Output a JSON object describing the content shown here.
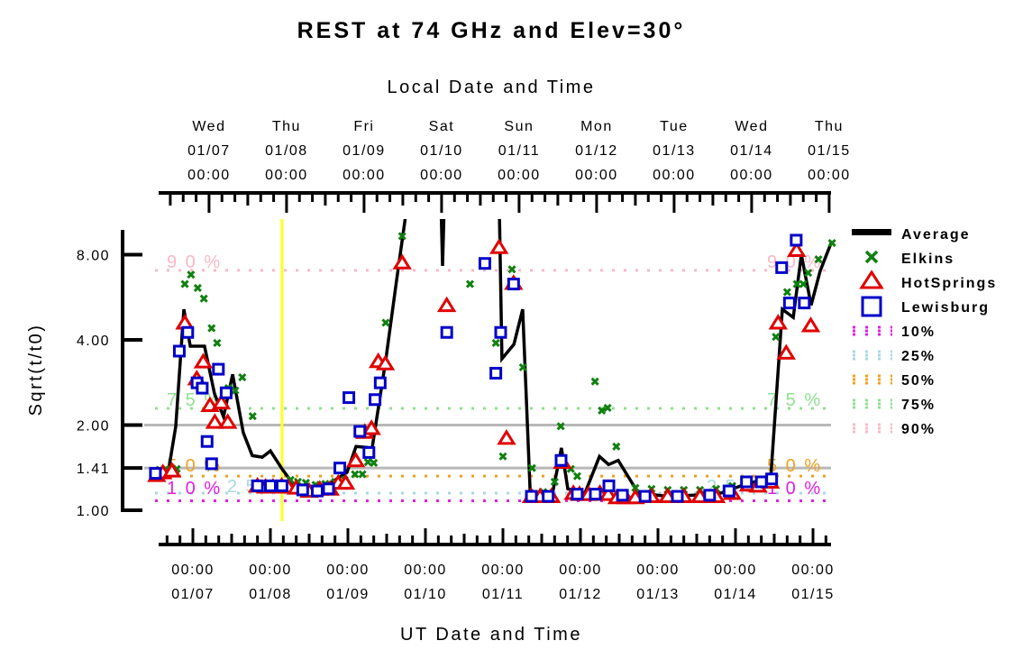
{
  "chart_data": {
    "type": "line",
    "title": "REST at 74 GHz and Elev=30°",
    "top_xlabel": "Local Date and Time",
    "xlabel": "UT Date and Time",
    "ylabel": "Sqrt(t/t0)",
    "yscale": "log2",
    "ylim": [
      1.0,
      11.0
    ],
    "xunit": "hours since 01/07 00:00 UT",
    "xlim": [
      -13,
      199
    ],
    "local_offset_hours": 5,
    "yticks": [
      {
        "value": 1.0,
        "label": "1.00"
      },
      {
        "value": 1.41,
        "label": "1.41"
      },
      {
        "value": 2.0,
        "label": "2.00"
      },
      {
        "value": 4.0,
        "label": "4.00"
      },
      {
        "value": 8.0,
        "label": "8.00"
      }
    ],
    "reference_lines": [
      1.41,
      2.0
    ],
    "top_ticks": [
      {
        "day": "Wed",
        "date": "01/07",
        "time": "00:00"
      },
      {
        "day": "Thu",
        "date": "01/08",
        "time": "00:00"
      },
      {
        "day": "Fri",
        "date": "01/09",
        "time": "00:00"
      },
      {
        "day": "Sat",
        "date": "01/10",
        "time": "00:00"
      },
      {
        "day": "Sun",
        "date": "01/11",
        "time": "00:00"
      },
      {
        "day": "Mon",
        "date": "01/12",
        "time": "00:00"
      },
      {
        "day": "Tue",
        "date": "01/13",
        "time": "00:00"
      },
      {
        "day": "Wed",
        "date": "01/14",
        "time": "00:00"
      },
      {
        "day": "Thu",
        "date": "01/15",
        "time": "00:00"
      }
    ],
    "bottom_ticks": [
      {
        "time": "00:00",
        "date": "01/07"
      },
      {
        "time": "00:00",
        "date": "01/08"
      },
      {
        "time": "00:00",
        "date": "01/09"
      },
      {
        "time": "00:00",
        "date": "01/10"
      },
      {
        "time": "00:00",
        "date": "01/11"
      },
      {
        "time": "00:00",
        "date": "01/12"
      },
      {
        "time": "00:00",
        "date": "01/13"
      },
      {
        "time": "00:00",
        "date": "01/14"
      },
      {
        "time": "00:00",
        "date": "01/15"
      }
    ],
    "current_time_marker_hours": 27.6,
    "percentiles": [
      {
        "name": "10%",
        "value": 1.08,
        "color": "#e020e0"
      },
      {
        "name": "25%",
        "value": 1.15,
        "color": "#a8d8e0"
      },
      {
        "name": "50%",
        "value": 1.32,
        "color": "#f0a020"
      },
      {
        "name": "75%",
        "value": 2.29,
        "color": "#90e090"
      },
      {
        "name": "90%",
        "value": 7.04,
        "color": "#f8b8c8"
      }
    ],
    "series": [
      {
        "name": "Average",
        "kind": "line",
        "color": "#000000",
        "points": [
          [
            -10.6,
            1.33
          ],
          [
            -7.5,
            1.39
          ],
          [
            -5.3,
            1.98
          ],
          [
            -2.8,
            5.13
          ],
          [
            -0.8,
            3.8
          ],
          [
            3.6,
            3.8
          ],
          [
            6.7,
            2.58
          ],
          [
            9.5,
            2.14
          ],
          [
            12.3,
            3.02
          ],
          [
            15.6,
            1.88
          ],
          [
            18.4,
            1.56
          ],
          [
            21.5,
            1.54
          ],
          [
            24,
            1.62
          ],
          [
            27.6,
            1.4
          ],
          [
            31,
            1.24
          ],
          [
            36.6,
            1.19
          ],
          [
            40.7,
            1.21
          ],
          [
            47.7,
            1.36
          ],
          [
            50.5,
            1.68
          ],
          [
            55.5,
            1.66
          ],
          [
            59.7,
            3.38
          ],
          [
            63.1,
            6.53
          ],
          [
            66.1,
            11.5
          ],
          [
            75.3,
            60
          ],
          [
            77.3,
            7.3
          ],
          [
            79.5,
            60
          ],
          [
            93.8,
            60
          ],
          [
            95.7,
            3.43
          ],
          [
            99.4,
            3.86
          ],
          [
            102.1,
            5.13
          ],
          [
            104.4,
            1.18
          ],
          [
            108,
            1.12
          ],
          [
            111.1,
            1.11
          ],
          [
            114.1,
            1.66
          ],
          [
            116.1,
            1.19
          ],
          [
            121.4,
            1.15
          ],
          [
            125.9,
            1.55
          ],
          [
            128.7,
            1.45
          ],
          [
            131.7,
            1.5
          ],
          [
            137.9,
            1.15
          ],
          [
            146.8,
            1.12
          ],
          [
            155.2,
            1.13
          ],
          [
            163.5,
            1.15
          ],
          [
            171.4,
            1.24
          ],
          [
            178.9,
            1.3
          ],
          [
            182.5,
            5.13
          ],
          [
            185.9,
            4.8
          ],
          [
            188.4,
            8.0
          ],
          [
            191.4,
            5.3
          ],
          [
            194.2,
            7.0
          ],
          [
            197.6,
            8.8
          ]
        ]
      },
      {
        "name": "Elkins",
        "kind": "x",
        "color": "#108010",
        "points": [
          [
            -10.3,
            1.39
          ],
          [
            -8.4,
            1.4
          ],
          [
            -5.0,
            1.4
          ],
          [
            -2.5,
            6.3
          ],
          [
            -0.6,
            6.8
          ],
          [
            1.5,
            6.1
          ],
          [
            3.4,
            5.6
          ],
          [
            5.8,
            4.4
          ],
          [
            7.5,
            3.9
          ],
          [
            11,
            2.7
          ],
          [
            13.1,
            2.65
          ],
          [
            15.3,
            2.95
          ],
          [
            18.5,
            2.15
          ],
          [
            30.2,
            1.28
          ],
          [
            32.5,
            1.26
          ],
          [
            35,
            1.25
          ],
          [
            38,
            1.23
          ],
          [
            41,
            1.24
          ],
          [
            44,
            1.26
          ],
          [
            47,
            1.28
          ],
          [
            50.2,
            1.34
          ],
          [
            52.5,
            1.34
          ],
          [
            54.2,
            1.48
          ],
          [
            56,
            1.47
          ],
          [
            59.7,
            4.6
          ],
          [
            64.8,
            9.3
          ],
          [
            85.8,
            6.3
          ],
          [
            93.8,
            3.9
          ],
          [
            96,
            1.55
          ],
          [
            98.8,
            7.1
          ],
          [
            102.2,
            3.2
          ],
          [
            105,
            1.41
          ],
          [
            108.5,
            1.16
          ],
          [
            112,
            1.26
          ],
          [
            113.9,
            1.98
          ],
          [
            117,
            1.4
          ],
          [
            119,
            1.32
          ],
          [
            124.5,
            2.85
          ],
          [
            126.6,
            2.25
          ],
          [
            128.4,
            2.3
          ],
          [
            131.1,
            1.68
          ],
          [
            137,
            1.2
          ],
          [
            142,
            1.19
          ],
          [
            147,
            1.18
          ],
          [
            152,
            1.18
          ],
          [
            157,
            1.18
          ],
          [
            162,
            1.19
          ],
          [
            167,
            1.22
          ],
          [
            172,
            1.23
          ],
          [
            177,
            1.27
          ],
          [
            180.5,
            4.1
          ],
          [
            184,
            5.9
          ],
          [
            187,
            6.3
          ],
          [
            189,
            6.3
          ],
          [
            190.5,
            6.9
          ],
          [
            193.7,
            7.7
          ],
          [
            197.9,
            8.8
          ]
        ]
      },
      {
        "name": "HotSprings",
        "kind": "triangle",
        "color": "#e00000",
        "points": [
          [
            -11.2,
            1.33
          ],
          [
            -9.3,
            1.36
          ],
          [
            -6.5,
            1.38
          ],
          [
            -2.5,
            4.6
          ],
          [
            1.2,
            2.92
          ],
          [
            3.2,
            3.35
          ],
          [
            5.3,
            2.35
          ],
          [
            6.8,
            2.05
          ],
          [
            8.8,
            2.4
          ],
          [
            10.8,
            2.05
          ],
          [
            20,
            1.22
          ],
          [
            22.5,
            1.21
          ],
          [
            24.8,
            1.21
          ],
          [
            27.5,
            1.22
          ],
          [
            29.5,
            1.21
          ],
          [
            32,
            1.2
          ],
          [
            36,
            1.17
          ],
          [
            39.3,
            1.19
          ],
          [
            42.5,
            1.19
          ],
          [
            45,
            1.25
          ],
          [
            47.3,
            1.25
          ],
          [
            50.4,
            1.5
          ],
          [
            53.2,
            1.89
          ],
          [
            55.3,
            1.95
          ],
          [
            57.4,
            3.36
          ],
          [
            59.6,
            3.3
          ],
          [
            64.8,
            7.5
          ],
          [
            78.6,
            5.3
          ],
          [
            94.8,
            8.5
          ],
          [
            97.1,
            1.8
          ],
          [
            99.3,
            6.35
          ],
          [
            104.8,
            1.12
          ],
          [
            107.5,
            1.12
          ],
          [
            111,
            1.12
          ],
          [
            114.4,
            1.48
          ],
          [
            117.8,
            1.15
          ],
          [
            119.7,
            1.14
          ],
          [
            122.5,
            1.14
          ],
          [
            126,
            1.15
          ],
          [
            128.6,
            1.14
          ],
          [
            131.3,
            1.11
          ],
          [
            134,
            1.11
          ],
          [
            137,
            1.11
          ],
          [
            142,
            1.12
          ],
          [
            147,
            1.12
          ],
          [
            152,
            1.12
          ],
          [
            157,
            1.12
          ],
          [
            162,
            1.12
          ],
          [
            167,
            1.15
          ],
          [
            172,
            1.23
          ],
          [
            175,
            1.22
          ],
          [
            178.8,
            1.26
          ],
          [
            181.2,
            4.6
          ],
          [
            183.7,
            3.6
          ],
          [
            186.9,
            8.3
          ],
          [
            191.3,
            4.5
          ]
        ]
      },
      {
        "name": "Lewisburg",
        "kind": "square",
        "color": "#0000c8",
        "points": [
          [
            -11.6,
            1.35
          ],
          [
            -4.2,
            3.65
          ],
          [
            -1.6,
            4.25
          ],
          [
            1.3,
            2.82
          ],
          [
            2.9,
            2.7
          ],
          [
            4.4,
            1.75
          ],
          [
            5.8,
            1.46
          ],
          [
            7.9,
            3.15
          ],
          [
            10.3,
            2.6
          ],
          [
            20,
            1.22
          ],
          [
            24,
            1.22
          ],
          [
            27.6,
            1.22
          ],
          [
            34,
            1.18
          ],
          [
            38.5,
            1.17
          ],
          [
            42,
            1.19
          ],
          [
            45.5,
            1.41
          ],
          [
            48.3,
            2.5
          ],
          [
            51.7,
            1.9
          ],
          [
            54.5,
            1.6
          ],
          [
            56.4,
            2.46
          ],
          [
            58,
            2.82
          ],
          [
            78.6,
            4.25
          ],
          [
            90.4,
            7.45
          ],
          [
            93.8,
            3.05
          ],
          [
            95.3,
            4.25
          ],
          [
            99.3,
            6.3
          ],
          [
            104.8,
            1.12
          ],
          [
            110,
            1.12
          ],
          [
            114,
            1.5
          ],
          [
            119,
            1.14
          ],
          [
            124.6,
            1.14
          ],
          [
            128.8,
            1.22
          ],
          [
            133,
            1.13
          ],
          [
            140,
            1.12
          ],
          [
            150,
            1.12
          ],
          [
            160,
            1.13
          ],
          [
            166,
            1.17
          ],
          [
            171.4,
            1.26
          ],
          [
            176,
            1.26
          ],
          [
            179.2,
            1.29
          ],
          [
            182.3,
            7.2
          ],
          [
            184.7,
            5.4
          ],
          [
            186.8,
            9.0
          ],
          [
            189.3,
            5.4
          ]
        ]
      }
    ]
  },
  "legend": [
    {
      "label": "Average",
      "marker": "thick-line",
      "color": "#000000"
    },
    {
      "label": "Elkins",
      "marker": "x",
      "color": "#108010"
    },
    {
      "label": "HotSprings",
      "marker": "triangle",
      "color": "#e00000"
    },
    {
      "label": "Lewisburg",
      "marker": "square",
      "color": "#0000c8"
    },
    {
      "label": "10%",
      "marker": "dotted",
      "color": "#e020e0"
    },
    {
      "label": "25%",
      "marker": "dotted",
      "color": "#a8d8e0"
    },
    {
      "label": "50%",
      "marker": "dotted",
      "color": "#f0a020"
    },
    {
      "label": "75%",
      "marker": "dotted",
      "color": "#90e090"
    },
    {
      "label": "90%",
      "marker": "dotted",
      "color": "#f8b8c8"
    }
  ],
  "percent_labels": {
    "p10": "1 0 %",
    "p25": "2 5 %",
    "p50": "5 0 %",
    "p75": "7 5 %",
    "p90": "9 0 %"
  },
  "colors": {
    "reference_line": "#b8b8b8",
    "time_marker": "#ffff20"
  }
}
